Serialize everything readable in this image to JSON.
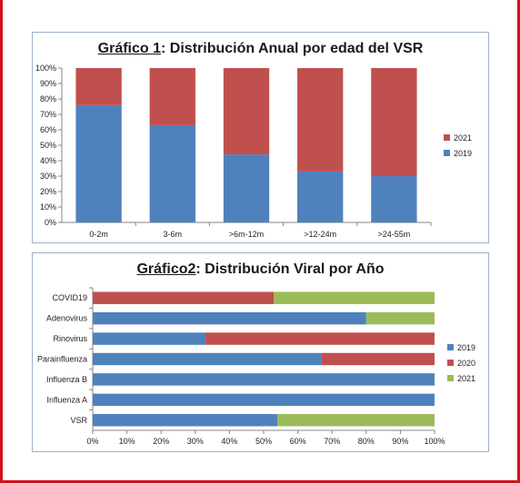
{
  "chart_data": [
    {
      "type": "bar",
      "stacked": true,
      "orientation": "vertical",
      "title_prefix": "Gráfico 1",
      "title_rest": ": Distribución Anual por edad del VSR",
      "categories": [
        "0-2m",
        "3-6m",
        ">6m-12m",
        ">12-24m",
        ">24-55m"
      ],
      "series": [
        {
          "name": "2019",
          "color": "#4f81bd",
          "values": [
            76,
            63,
            44,
            33,
            30
          ]
        },
        {
          "name": "2021",
          "color": "#c0504d",
          "values": [
            24,
            37,
            56,
            67,
            70
          ]
        }
      ],
      "ylim": [
        0,
        100
      ],
      "yticks": [
        "0%",
        "10%",
        "20%",
        "30%",
        "40%",
        "50%",
        "60%",
        "70%",
        "80%",
        "90%",
        "100%"
      ],
      "legend": "right",
      "legend_order": [
        "2021",
        "2019"
      ]
    },
    {
      "type": "bar",
      "stacked": true,
      "orientation": "horizontal",
      "title_prefix": "Gráfico2",
      "title_rest": ": Distribución Viral por Año",
      "categories": [
        "COVID19",
        "Adenovirus",
        "Rinovirus",
        "Parainfluenza",
        "Influenza B",
        "Influenza A",
        "VSR"
      ],
      "series": [
        {
          "name": "2019",
          "color": "#4f81bd",
          "values": [
            0,
            80,
            33,
            67,
            100,
            100,
            54
          ]
        },
        {
          "name": "2020",
          "color": "#c0504d",
          "values": [
            53,
            0,
            67,
            33,
            0,
            0,
            0
          ]
        },
        {
          "name": "2021",
          "color": "#9bbb59",
          "values": [
            47,
            20,
            0,
            0,
            0,
            0,
            46
          ]
        }
      ],
      "xlim": [
        0,
        100
      ],
      "xticks": [
        "0%",
        "10%",
        "20%",
        "30%",
        "40%",
        "50%",
        "60%",
        "70%",
        "80%",
        "90%",
        "100%"
      ],
      "legend": "right"
    }
  ]
}
